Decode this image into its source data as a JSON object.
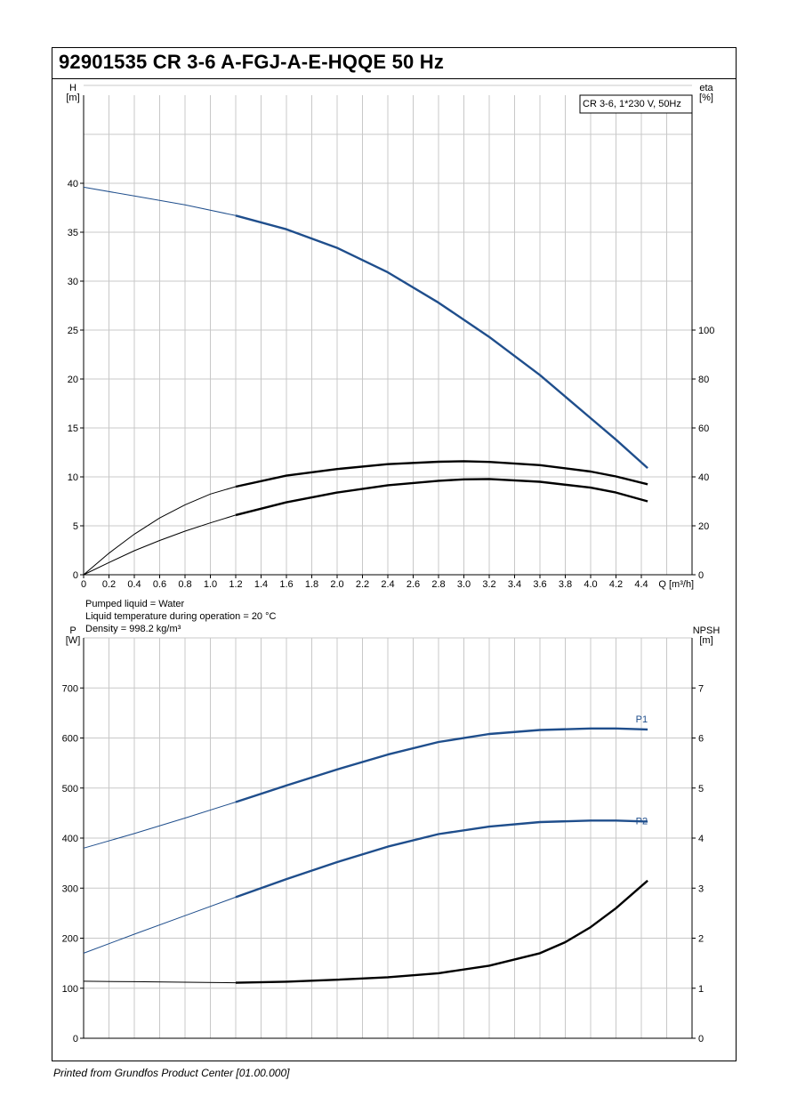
{
  "title": "92901535 CR 3-6 A-FGJ-A-E-HQQE 50 Hz",
  "footer": "Printed from Grundfos Product Center [01.00.000]",
  "colors": {
    "blue": "#1f4e8c",
    "black": "#000000",
    "grid": "#c8c8c8"
  },
  "chart_data": [
    {
      "type": "line",
      "name": "head-efficiency",
      "legend_box": "CR 3-6, 1*230 V, 50Hz",
      "left_axis": {
        "label": "H",
        "unit": "[m]",
        "ticks": [
          0,
          5,
          10,
          15,
          20,
          25,
          30,
          35,
          40
        ],
        "lim": [
          0,
          49
        ]
      },
      "right_axis": {
        "label": "eta",
        "unit": "[%]",
        "ticks": [
          0,
          20,
          40,
          60,
          80,
          100
        ],
        "lim": [
          0,
          196
        ]
      },
      "x_axis": {
        "label": "Q [m³/h]",
        "lim": [
          0,
          4.8
        ],
        "ticks": [
          "0",
          "0.2",
          "0.4",
          "0.6",
          "0.8",
          "1.0",
          "1.2",
          "1.4",
          "1.6",
          "1.8",
          "2.0",
          "2.2",
          "2.4",
          "2.6",
          "2.8",
          "3.0",
          "3.2",
          "3.4",
          "3.6",
          "3.8",
          "4.0",
          "4.2",
          "4.4"
        ]
      },
      "series": [
        {
          "axis": "left",
          "color": "#1f4e8c",
          "x": [
            0,
            0.4,
            0.8,
            1.2,
            1.6,
            2.0,
            2.4,
            2.8,
            3.2,
            3.6,
            4.0,
            4.2,
            4.45
          ],
          "y": [
            39.6,
            38.7,
            37.8,
            36.7,
            35.3,
            33.4,
            30.9,
            27.8,
            24.3,
            20.4,
            16.0,
            13.8,
            10.9
          ]
        },
        {
          "axis": "right",
          "color": "#000000",
          "x": [
            0,
            0.2,
            0.4,
            0.6,
            0.8,
            1.0,
            1.2,
            1.6,
            2.0,
            2.4,
            2.8,
            3.0,
            3.2,
            3.6,
            4.0,
            4.2,
            4.45
          ],
          "y": [
            0,
            8.8,
            16.6,
            23.2,
            28.6,
            33.0,
            36.0,
            40.5,
            43.2,
            45.2,
            46.2,
            46.4,
            46.1,
            44.8,
            42.2,
            40.2,
            37.0
          ]
        },
        {
          "axis": "left",
          "color": "#000000",
          "x": [
            0,
            0.2,
            0.4,
            0.6,
            0.8,
            1.0,
            1.2,
            1.6,
            2.0,
            2.4,
            2.8,
            3.0,
            3.2,
            3.6,
            4.0,
            4.2,
            4.45
          ],
          "y": [
            0,
            1.25,
            2.45,
            3.5,
            4.45,
            5.3,
            6.1,
            7.4,
            8.4,
            9.15,
            9.6,
            9.75,
            9.78,
            9.5,
            8.9,
            8.4,
            7.5
          ]
        }
      ]
    },
    {
      "type": "line",
      "name": "power-npsh",
      "notes": [
        "Pumped liquid = Water",
        "Liquid temperature during operation = 20 °C",
        "Density = 998.2 kg/m³"
      ],
      "left_axis": {
        "label": "P",
        "unit": "[W]",
        "ticks": [
          0,
          100,
          200,
          300,
          400,
          500,
          600,
          700
        ],
        "lim": [
          0,
          800
        ]
      },
      "right_axis": {
        "label": "NPSH",
        "unit": "[m]",
        "ticks": [
          0,
          1,
          2,
          3,
          4,
          5,
          6,
          7
        ],
        "lim": [
          0,
          8
        ]
      },
      "series": [
        {
          "name": "P1",
          "axis": "left",
          "color": "#1f4e8c",
          "x": [
            0,
            0.4,
            0.8,
            1.2,
            1.6,
            2.0,
            2.4,
            2.8,
            3.2,
            3.6,
            4.0,
            4.2,
            4.45
          ],
          "y": [
            380,
            409,
            440,
            472,
            505,
            537,
            567,
            592,
            608,
            616,
            619,
            619,
            617
          ]
        },
        {
          "name": "P2",
          "axis": "left",
          "color": "#1f4e8c",
          "x": [
            0,
            0.4,
            0.8,
            1.2,
            1.6,
            2.0,
            2.4,
            2.8,
            3.2,
            3.6,
            4.0,
            4.2,
            4.45
          ],
          "y": [
            170,
            208,
            245,
            282,
            318,
            352,
            383,
            408,
            423,
            432,
            435,
            435,
            433
          ]
        },
        {
          "axis": "right",
          "color": "#000000",
          "x": [
            0,
            0.4,
            0.8,
            1.2,
            1.6,
            2.0,
            2.4,
            2.8,
            3.2,
            3.6,
            3.8,
            4.0,
            4.2,
            4.45
          ],
          "y": [
            1.14,
            1.13,
            1.12,
            1.11,
            1.13,
            1.17,
            1.22,
            1.3,
            1.45,
            1.7,
            1.92,
            2.22,
            2.6,
            3.15
          ]
        }
      ]
    }
  ]
}
